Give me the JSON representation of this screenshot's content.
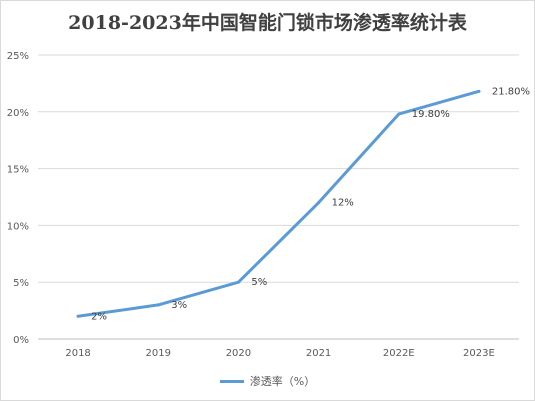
{
  "chart_data": {
    "type": "line",
    "title": "2018-2023年中国智能门锁市场渗透率统计表",
    "categories": [
      "2018",
      "2019",
      "2020",
      "2021",
      "2022E",
      "2023E"
    ],
    "series": [
      {
        "name": "渗透率（%）",
        "values": [
          2,
          3,
          5,
          12,
          19.8,
          21.8
        ],
        "labels": [
          "2%",
          "3%",
          "5%",
          "12%",
          "19.80%",
          "21.80%"
        ],
        "color": "#5b9bd5"
      }
    ],
    "y_ticks": [
      "0%",
      "5%",
      "10%",
      "15%",
      "20%",
      "25%"
    ],
    "ylim": [
      0,
      25
    ],
    "grid": true,
    "legend": "bottom"
  }
}
